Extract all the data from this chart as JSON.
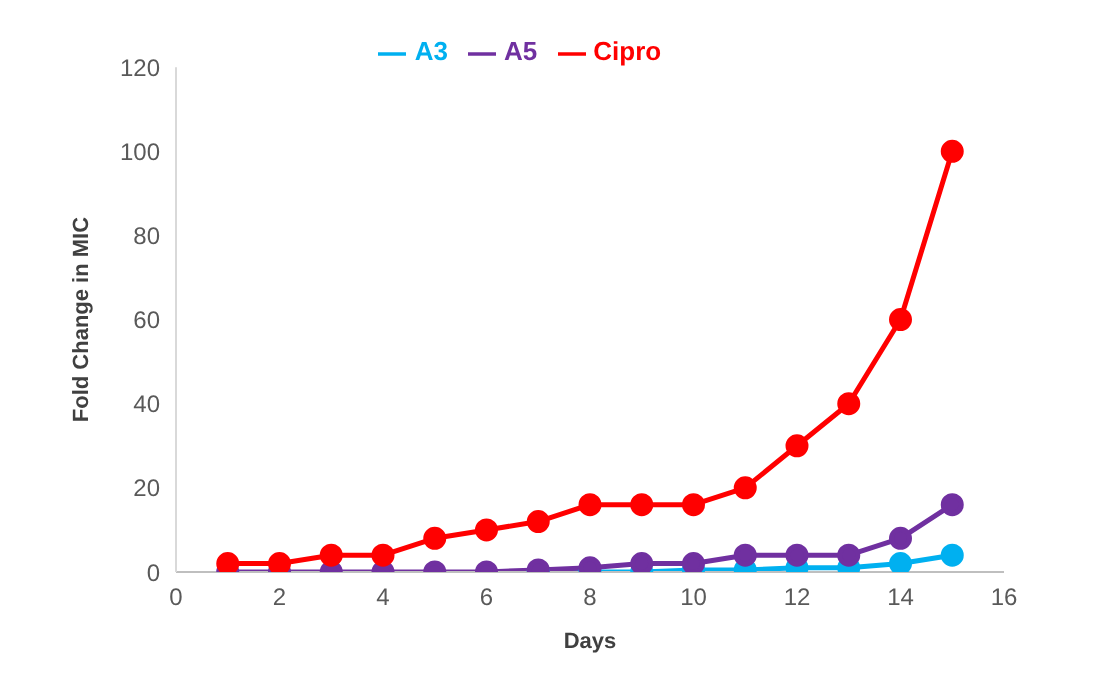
{
  "chart_data": {
    "type": "line",
    "xlabel": "Days",
    "ylabel": "Fold Change in MIC",
    "x": [
      1,
      2,
      3,
      4,
      5,
      6,
      7,
      8,
      9,
      10,
      11,
      12,
      13,
      14,
      15
    ],
    "series": [
      {
        "name": "A3",
        "color": "#00b0f0",
        "values": [
          null,
          null,
          null,
          null,
          null,
          null,
          0,
          0,
          0,
          0.5,
          0.5,
          1,
          1,
          2,
          4
        ]
      },
      {
        "name": "A5",
        "color": "#7030a0",
        "values": [
          0,
          0,
          0,
          0,
          0,
          0,
          0.5,
          1,
          2,
          2,
          4,
          4,
          4,
          8,
          16
        ]
      },
      {
        "name": "Cipro",
        "color": "#ff0000",
        "values": [
          2,
          2,
          4,
          4,
          8,
          10,
          12,
          16,
          16,
          16,
          20,
          30,
          40,
          60,
          100
        ]
      }
    ],
    "xlim": [
      0,
      16
    ],
    "xticks": [
      0,
      2,
      4,
      6,
      8,
      10,
      12,
      14,
      16
    ],
    "ylim": [
      0,
      120
    ],
    "yticks": [
      0,
      20,
      40,
      60,
      80,
      100,
      120
    ],
    "grid": false,
    "legend": "top",
    "marker": "circle",
    "line_style": "solid"
  }
}
